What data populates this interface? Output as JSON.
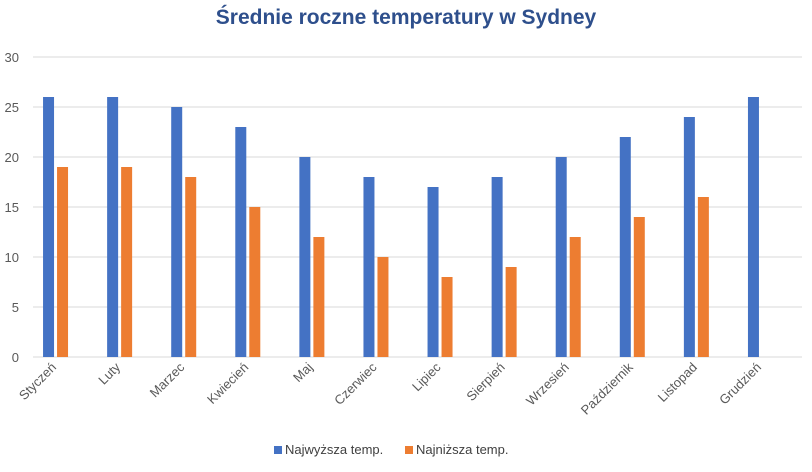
{
  "chart_data": {
    "type": "bar",
    "title": "Średnie roczne temperatury w Sydney",
    "categories": [
      "Styczeń",
      "Luty",
      "Marzec",
      "Kwiecień",
      "Maj",
      "Czerwiec",
      "Lipiec",
      "Sierpień",
      "Wrzesień",
      "Październik",
      "Listopad",
      "Grudzień"
    ],
    "series": [
      {
        "name": "Najwyższa temp.",
        "color": "#4472C4",
        "values": [
          26,
          26,
          25,
          23,
          20,
          18,
          17,
          18,
          20,
          22,
          24,
          26
        ]
      },
      {
        "name": "Najniższa temp.",
        "color": "#ED7D31",
        "values": [
          19,
          19,
          18,
          15,
          12,
          10,
          8,
          9,
          12,
          14,
          16,
          null
        ]
      }
    ],
    "ylim": [
      0,
      30
    ],
    "yticks": [
      "0",
      "5",
      "10",
      "15",
      "20",
      "25",
      "30"
    ],
    "xlabel": "",
    "ylabel": "",
    "grid": true,
    "legend_position": "bottom",
    "grid_color": "#D9D9D9",
    "title_color": "#2E4F8C"
  }
}
